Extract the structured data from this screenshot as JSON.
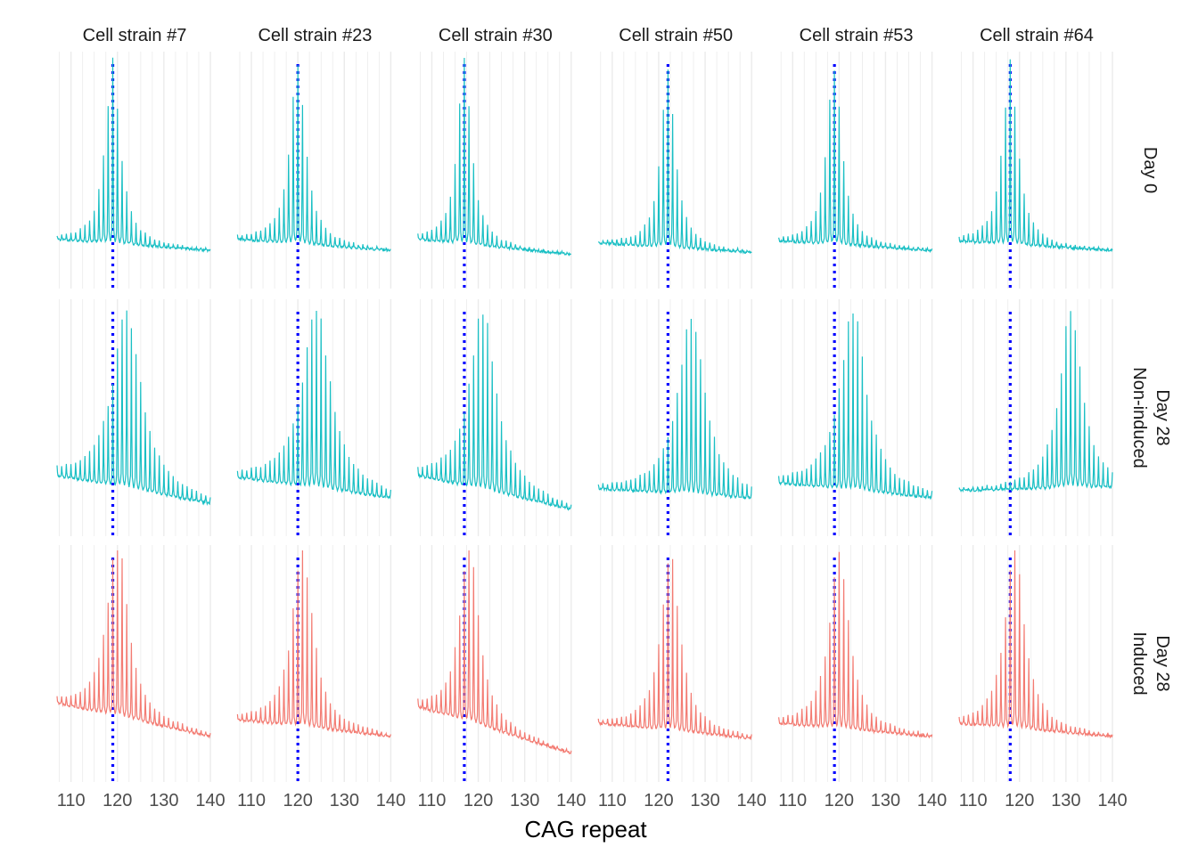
{
  "chart_data": {
    "type": "line",
    "xlabel": "CAG repeat",
    "ylabel": "",
    "xlim": [
      107,
      140
    ],
    "x_ticks": [
      "110",
      "120",
      "130",
      "140"
    ],
    "x_tick_values": [
      110,
      120,
      130,
      140
    ],
    "x_minor_grid_step": 2.5,
    "grid": "vertical major and minor lines",
    "legend": "none",
    "colors": {
      "non_induced": "#19BFC4",
      "induced": "#F37B72",
      "reference_line": "#0000FF",
      "grid": "#EBEBEB"
    },
    "columns": [
      {
        "label": "Cell strain #7",
        "modal_repeat": 119
      },
      {
        "label": "Cell strain #23",
        "modal_repeat": 120
      },
      {
        "label": "Cell strain #30",
        "modal_repeat": 117
      },
      {
        "label": "Cell strain #50",
        "modal_repeat": 122
      },
      {
        "label": "Cell strain #53",
        "modal_repeat": 119
      },
      {
        "label": "Cell strain #64",
        "modal_repeat": 118
      }
    ],
    "rows": [
      {
        "label_lines": [
          "Day 0"
        ],
        "condition": "non_induced"
      },
      {
        "label_lines": [
          "Day 28",
          "Non-induced"
        ],
        "condition": "non_induced"
      },
      {
        "label_lines": [
          "Day 28",
          "Induced"
        ],
        "condition": "induced"
      }
    ],
    "peak_repeat": [
      [
        119,
        120,
        117,
        122,
        119,
        118
      ],
      [
        122,
        124,
        121,
        127,
        123,
        131
      ],
      [
        120,
        121,
        118,
        122.5,
        120,
        119
      ]
    ],
    "distribution_width": [
      [
        1.9,
        2.0,
        1.8,
        1.8,
        1.9,
        1.9
      ],
      [
        3.6,
        3.6,
        3.4,
        3.4,
        3.4,
        2.8
      ],
      [
        2.6,
        2.6,
        2.4,
        2.4,
        2.5,
        2.5
      ]
    ],
    "baseline_left": [
      [
        0.06,
        0.06,
        0.06,
        0.04,
        0.05,
        0.05
      ],
      [
        0.12,
        0.11,
        0.12,
        0.05,
        0.08,
        0.04
      ],
      [
        0.22,
        0.13,
        0.2,
        0.11,
        0.11,
        0.11
      ]
    ],
    "baseline_right": [
      [
        0.0,
        0.0,
        -0.02,
        -0.01,
        0.0,
        0.0
      ],
      [
        -0.03,
        0.0,
        -0.06,
        0.0,
        0.0,
        0.06
      ],
      [
        0.04,
        0.04,
        -0.05,
        0.03,
        0.04,
        0.04
      ]
    ]
  }
}
